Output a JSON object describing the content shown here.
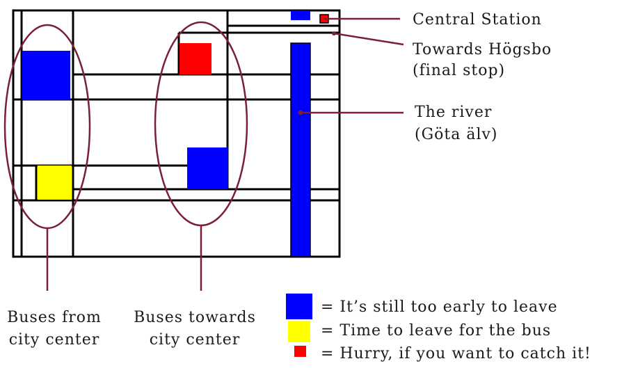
{
  "colors": {
    "blue": "#0000ff",
    "yellow": "#ffff00",
    "red": "#ff0000",
    "line": "#000000",
    "annotation": "#7a1f35"
  },
  "labels": {
    "central_station": "Central Station",
    "towards_hogsbo_1": "Towards Högsbo",
    "towards_hogsbo_2": "(final stop)",
    "river_1": "The river",
    "river_2": "(Göta älv)",
    "buses_from_1": "Buses from",
    "buses_from_2": "city center",
    "buses_towards_1": "Buses towards",
    "buses_towards_2": "city center"
  },
  "legend": [
    {
      "color": "blue",
      "text": "= It’s still too early to leave"
    },
    {
      "color": "yellow",
      "text": "= Time to leave for the bus"
    },
    {
      "color": "red",
      "text": "= Hurry, if you want to catch it!"
    }
  ]
}
